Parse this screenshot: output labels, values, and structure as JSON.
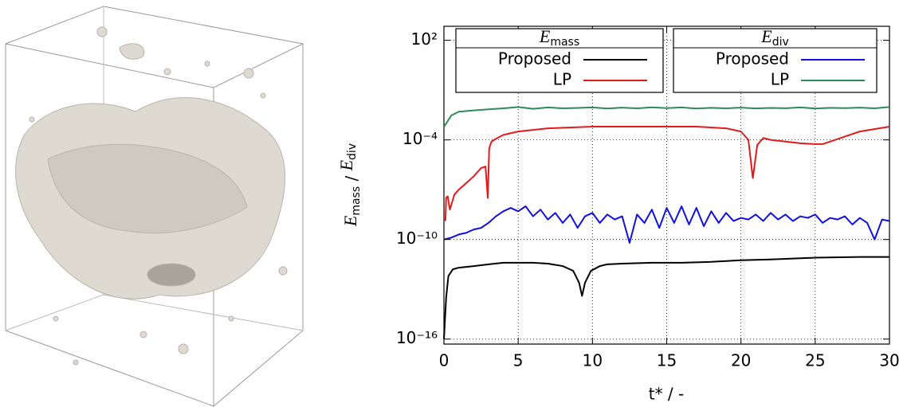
{
  "chart_data": {
    "type": "line",
    "xlabel": "t* / -",
    "ylabel": [
      "E",
      "mass",
      " / ",
      "E",
      "div"
    ],
    "legend_titles": [
      [
        "E",
        "mass"
      ],
      [
        "E",
        "div"
      ]
    ],
    "log_y": true,
    "grid": true,
    "xlim": [
      0,
      30
    ],
    "xticks": [
      0,
      5,
      10,
      15,
      20,
      25,
      30
    ],
    "ylim": [
      5e-17,
      700
    ],
    "yticks": [
      {
        "value": 100,
        "label": "10²"
      },
      {
        "value": 0.0001,
        "label": "10⁻⁴"
      },
      {
        "value": 1e-10,
        "label": "10⁻¹⁰"
      },
      {
        "value": 1e-16,
        "label": "10⁻¹⁶"
      }
    ],
    "series": [
      {
        "name": "Proposed",
        "group": 0,
        "color": "#000000",
        "x": [
          0,
          0.15,
          0.3,
          0.6,
          1,
          2,
          3,
          4,
          5,
          6,
          7,
          8,
          8.7,
          9.1,
          9.3,
          9.5,
          9.9,
          10.5,
          11,
          12,
          14,
          16,
          18,
          20,
          22,
          25,
          28,
          30
        ],
        "values": [
          1e-16,
          3.2e-14,
          6.3e-13,
          1.6e-12,
          2e-12,
          2.5e-12,
          3.2e-12,
          4e-12,
          4e-12,
          4e-12,
          3.5e-12,
          2.5e-12,
          1.3e-12,
          2.5e-13,
          4e-14,
          2.5e-13,
          1.3e-12,
          2.5e-12,
          3.2e-12,
          3.5e-12,
          4e-12,
          4e-12,
          4.5e-12,
          5.6e-12,
          6.3e-12,
          8e-12,
          8.9e-12,
          8.9e-12
        ]
      },
      {
        "name": "LP",
        "group": 0,
        "color": "#e31a1c",
        "x": [
          0.1,
          0.15,
          0.25,
          0.4,
          0.7,
          1,
          1.5,
          2,
          2.5,
          2.8,
          2.95,
          3.05,
          3.2,
          3.6,
          4,
          5,
          7,
          10,
          14,
          17,
          19,
          20,
          20.5,
          20.8,
          21.1,
          21.5,
          22,
          23,
          24,
          25,
          25.5,
          26,
          27,
          28,
          30
        ],
        "values": [
          1.3e-09,
          3.2e-08,
          4e-08,
          6.3e-09,
          5e-08,
          1e-07,
          2.5e-07,
          6.3e-07,
          2e-06,
          2.5e-06,
          3.2e-08,
          3.2e-05,
          7.9e-05,
          0.00013,
          0.0002,
          0.00032,
          0.0005,
          0.00063,
          0.00063,
          0.00063,
          0.0005,
          0.00032,
          0.0001,
          5e-07,
          5e-05,
          0.00013,
          0.0001,
          7.9e-05,
          6.3e-05,
          5.6e-05,
          5.6e-05,
          7.9e-05,
          0.00016,
          0.00032,
          0.00063
        ]
      },
      {
        "name": "Proposed",
        "group": 1,
        "color": "#1010e0",
        "x": [
          0,
          0.5,
          1,
          1.5,
          2,
          2.5,
          3,
          3.5,
          4,
          4.5,
          5,
          5.5,
          6,
          6.5,
          7,
          7.5,
          8,
          8.5,
          9,
          9.5,
          10,
          10.5,
          11,
          11.5,
          12,
          12.5,
          13,
          13.5,
          14,
          14.5,
          15,
          15.5,
          16,
          16.5,
          17,
          17.5,
          18,
          18.5,
          19,
          19.5,
          20,
          20.5,
          21,
          21.5,
          22,
          22.5,
          23,
          23.5,
          24,
          24.5,
          25,
          25.5,
          26,
          26.5,
          27,
          27.5,
          28,
          28.5,
          29,
          29.5,
          30
        ],
        "values": [
          1e-10,
          1.3e-10,
          2e-10,
          2.5e-10,
          4e-10,
          5e-10,
          1e-09,
          2.5e-09,
          5e-09,
          8e-09,
          5e-09,
          1e-08,
          2.5e-09,
          6.3e-09,
          1.6e-09,
          4e-09,
          1e-09,
          3.2e-09,
          5e-10,
          2.5e-09,
          4e-09,
          1e-09,
          3.2e-09,
          1.6e-09,
          2.5e-09,
          6.3e-11,
          3.2e-09,
          1e-09,
          6.3e-09,
          5e-10,
          8e-09,
          1e-09,
          1e-08,
          8e-10,
          8e-09,
          6.3e-10,
          5e-09,
          1e-09,
          4e-09,
          1.3e-09,
          2e-09,
          1.6e-09,
          3.2e-09,
          1.3e-09,
          4e-09,
          1.6e-09,
          3.2e-09,
          1.3e-09,
          2.5e-09,
          2e-09,
          3.2e-09,
          1e-09,
          2e-09,
          1.6e-09,
          2.5e-09,
          8e-10,
          2e-09,
          1e-09,
          1e-10,
          1.6e-09,
          1.3e-09
        ]
      },
      {
        "name": "LP",
        "group": 1,
        "color": "#2e8b57",
        "x": [
          0,
          0.5,
          1,
          2,
          3,
          4,
          5,
          6,
          7,
          8,
          9,
          10,
          11,
          12,
          13,
          14,
          15,
          16,
          17,
          18,
          19,
          20,
          21,
          22,
          23,
          24,
          25,
          26,
          27,
          28,
          29,
          30
        ],
        "values": [
          0.0006,
          0.003,
          0.005,
          0.006,
          0.007,
          0.008,
          0.0095,
          0.0075,
          0.009,
          0.008,
          0.0085,
          0.009,
          0.0078,
          0.0088,
          0.008,
          0.0092,
          0.0082,
          0.009,
          0.0078,
          0.0086,
          0.008,
          0.0088,
          0.0079,
          0.0085,
          0.0081,
          0.009,
          0.0078,
          0.0086,
          0.0082,
          0.0088,
          0.008,
          0.0095
        ]
      }
    ]
  }
}
